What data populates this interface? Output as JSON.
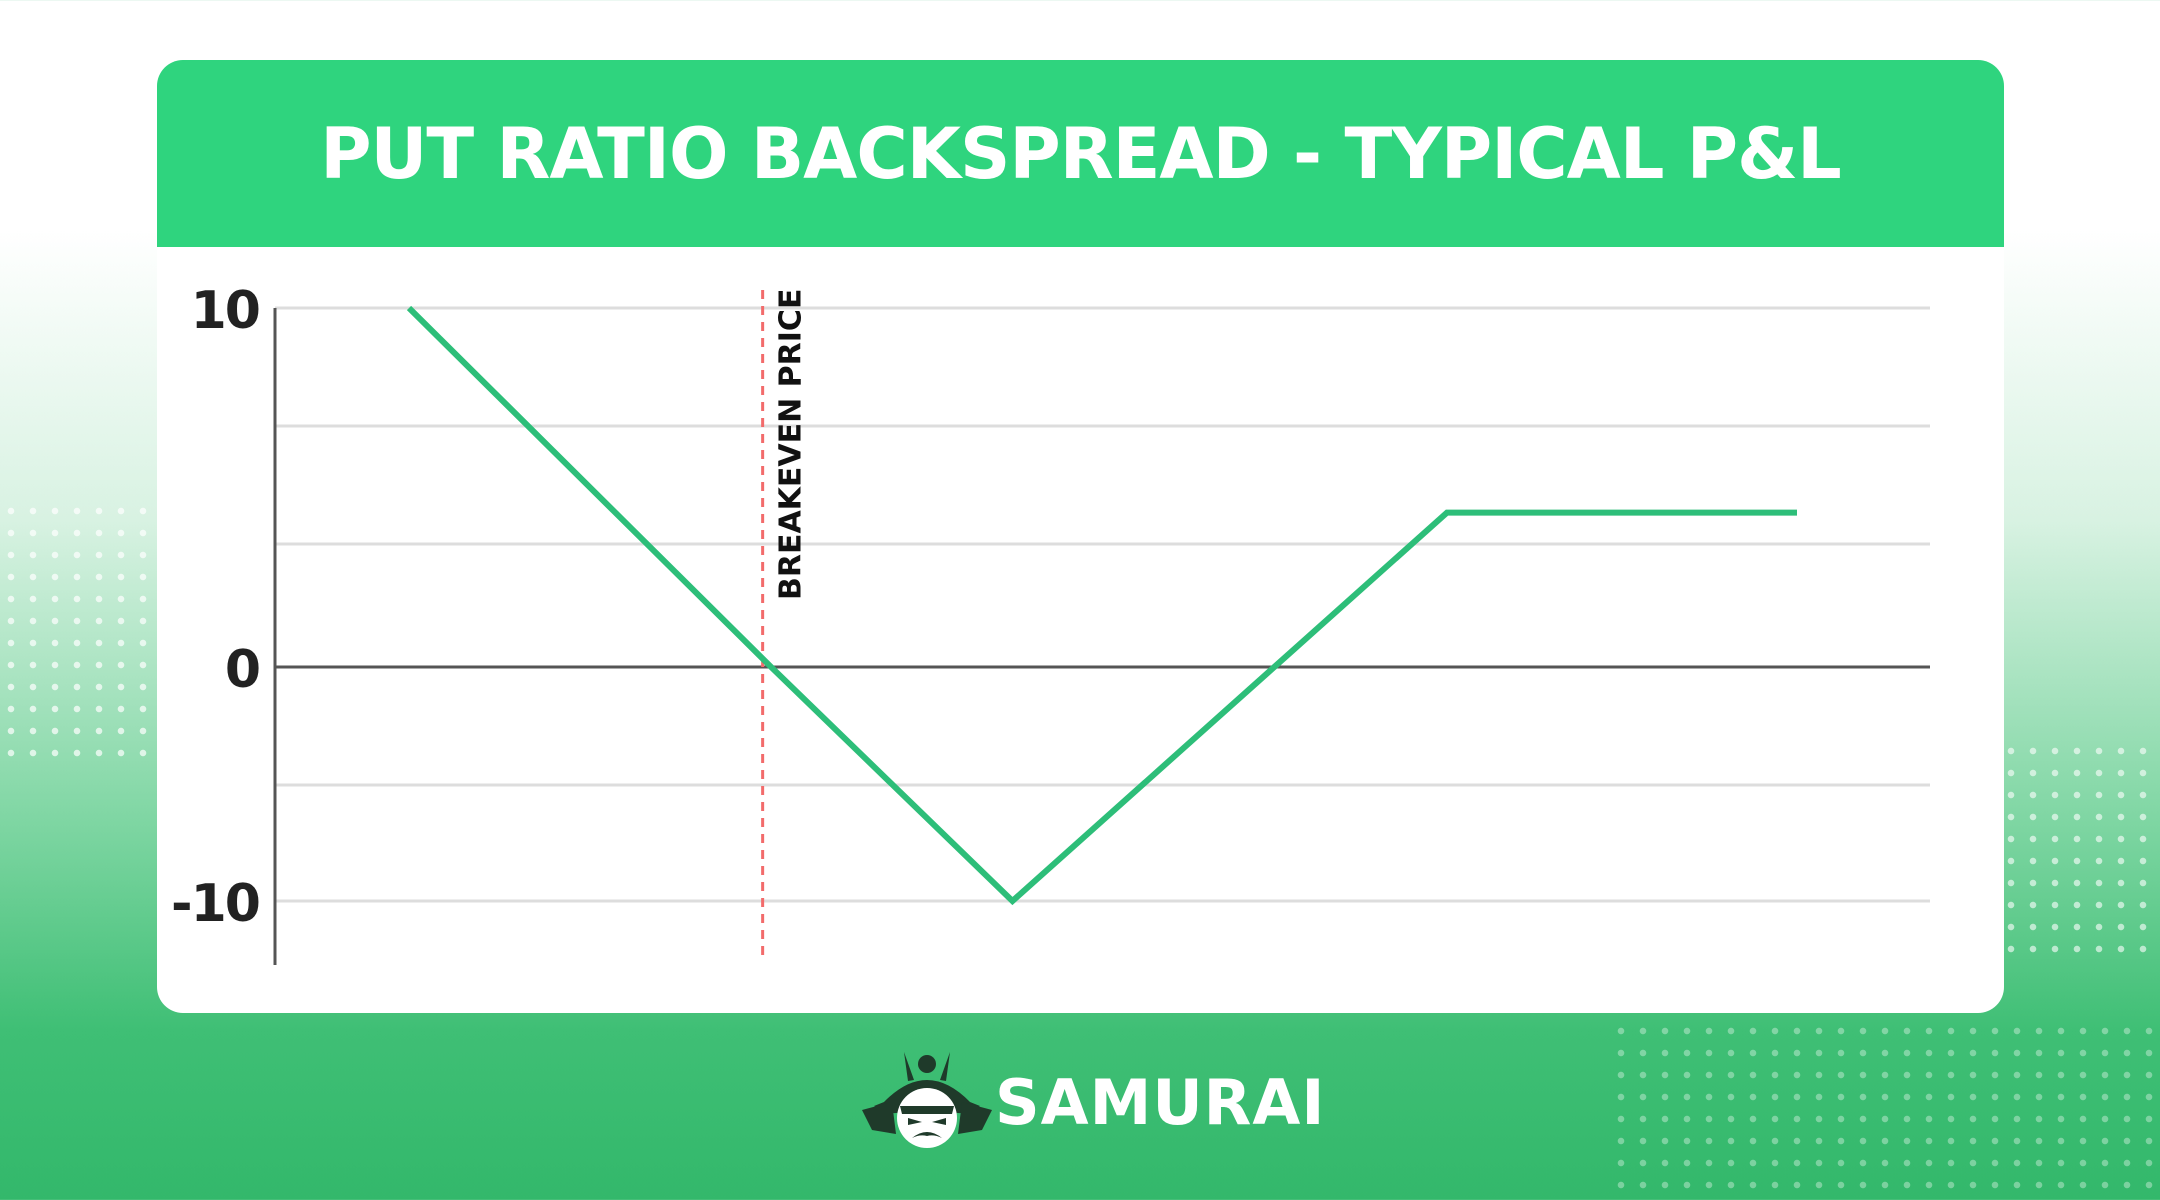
{
  "title": "PUT RATIO BACKSPREAD - TYPICAL P&L",
  "brand": {
    "name": "SAMURAI",
    "logo_icon": "samurai-helmet-icon"
  },
  "colors": {
    "accent": "#2fd47e",
    "line": "#2dbe79",
    "breakeven": "#f26b6b",
    "axis": "#555555",
    "grid": "#dddddd"
  },
  "chart_data": {
    "type": "line",
    "title": "PUT RATIO BACKSPREAD - TYPICAL P&L",
    "xlabel": "",
    "ylabel": "",
    "ylim": [
      -12.5,
      10
    ],
    "yticks": [
      10,
      0,
      -10
    ],
    "ytick_labels": [
      "10",
      "0",
      "-10"
    ],
    "grid": true,
    "series": [
      {
        "x": [
          0,
          3,
          5,
          8.6,
          11.5
        ],
        "y": [
          10,
          0,
          -10,
          4.3,
          4.3
        ]
      }
    ],
    "annotations": [
      {
        "type": "vline",
        "x": 2.93,
        "label": "BREAKEVEN PRICE",
        "style": "dashed"
      }
    ]
  }
}
